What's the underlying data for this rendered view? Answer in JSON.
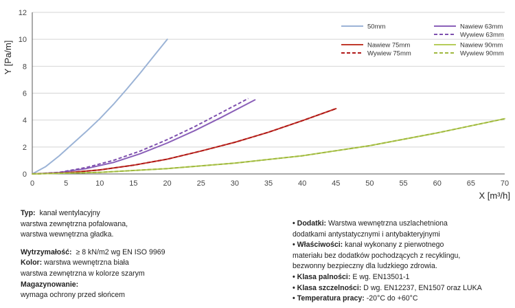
{
  "chart_data": {
    "type": "line",
    "xlabel": "X [m³/h]",
    "ylabel": "Y [Pa/m]",
    "xlim": [
      0,
      70
    ],
    "ylim": [
      0,
      12
    ],
    "xticks": [
      0,
      5,
      10,
      15,
      20,
      25,
      30,
      35,
      40,
      45,
      50,
      55,
      60,
      65,
      70
    ],
    "yticks": [
      0,
      2,
      4,
      6,
      8,
      10,
      12
    ],
    "grid": "horizontal",
    "legend_position": "top-right",
    "series": [
      {
        "name": "50mm",
        "color": "#9bb3d6",
        "style": "solid",
        "x": [
          0,
          2,
          4,
          6,
          8,
          10,
          12,
          14,
          16,
          18,
          20
        ],
        "y": [
          0,
          0.55,
          1.35,
          2.25,
          3.15,
          4.1,
          5.15,
          6.3,
          7.5,
          8.75,
          10.0
        ]
      },
      {
        "name": "Nawiew 63mm",
        "color": "#8a5fb8",
        "style": "solid",
        "x": [
          0,
          4,
          8,
          12,
          16,
          20,
          24,
          28,
          33
        ],
        "y": [
          0,
          0.1,
          0.4,
          0.85,
          1.5,
          2.3,
          3.2,
          4.2,
          5.5
        ]
      },
      {
        "name": "Wywiew 63mm",
        "color": "#7d4fae",
        "style": "dashed",
        "x": [
          0,
          4,
          8,
          12,
          16,
          20,
          24,
          28,
          32
        ],
        "y": [
          0,
          0.12,
          0.48,
          1.0,
          1.7,
          2.55,
          3.5,
          4.55,
          5.6
        ]
      },
      {
        "name": "Nawiew 75mm",
        "color": "#c0392b",
        "style": "solid",
        "x": [
          0,
          5,
          10,
          15,
          20,
          25,
          30,
          35,
          40,
          45
        ],
        "y": [
          0,
          0.08,
          0.3,
          0.65,
          1.1,
          1.7,
          2.35,
          3.1,
          3.95,
          4.85
        ]
      },
      {
        "name": "Wywiew 75mm",
        "color": "#b01818",
        "style": "dashed",
        "x": [
          0,
          5,
          10,
          15,
          20,
          25,
          30,
          35,
          40,
          45
        ],
        "y": [
          0,
          0.08,
          0.3,
          0.65,
          1.1,
          1.7,
          2.35,
          3.1,
          3.95,
          4.85
        ]
      },
      {
        "name": "Nawiew 90mm",
        "color": "#b5cc5a",
        "style": "solid",
        "x": [
          0,
          10,
          20,
          30,
          40,
          50,
          60,
          70
        ],
        "y": [
          0,
          0.12,
          0.4,
          0.8,
          1.35,
          2.1,
          3.05,
          4.1
        ]
      },
      {
        "name": "Wywiew 90mm",
        "color": "#9fb83e",
        "style": "dashed",
        "x": [
          0,
          10,
          20,
          30,
          40,
          50,
          60,
          70
        ],
        "y": [
          0,
          0.12,
          0.4,
          0.8,
          1.35,
          2.1,
          3.05,
          4.1
        ]
      }
    ]
  },
  "info": {
    "left": {
      "typ_label": "Typ:",
      "typ_value": "kanał wentylacyjny",
      "typ_line2": "warstwa zewnętrzna pofalowana,",
      "typ_line3": "warstwa wewnętrzna gładka.",
      "wytrzymalosc_label": "Wytrzymałość:",
      "wytrzymalosc_value": "≥ 8 kN/m2 wg EN ISO 9969",
      "kolor_label": "Kolor:",
      "kolor_value": "warstwa wewnętrzna biała",
      "kolor_line2": "warstwa zewnętrzna w kolorze szarym",
      "magazynowanie_label": "Magazynowanie:",
      "magazynowanie_value": "wymaga ochrony przed słońcem"
    },
    "right": {
      "bullet": "•",
      "dodatki_label": "Dodatki:",
      "dodatki_value": "Warstwa wewnętrzna uszlachetniona",
      "dodatki_line2": "dodatkami antystatycznymi i antybakteryjnymi",
      "wlasciwosci_label": "Właściwości:",
      "wlasciwosci_value": "kanał wykonany z pierwotnego",
      "wlasciwosci_line2": "materiału bez dodatków pochodzących z recyklingu,",
      "wlasciwosci_line3": "bezwonny bezpieczny dla ludzkiego zdrowia.",
      "klasa_palnosci_label": "Klasa palności:",
      "klasa_palnosci_value": "E wg. EN13501-1",
      "klasa_szczelnosci_label": "Klasa szczelności:",
      "klasa_szczelnosci_value": "D wg. EN12237, EN1507 oraz LUKA",
      "temperatura_label": "Temperatura pracy:",
      "temperatura_value": "-20°C do +60°C"
    }
  }
}
